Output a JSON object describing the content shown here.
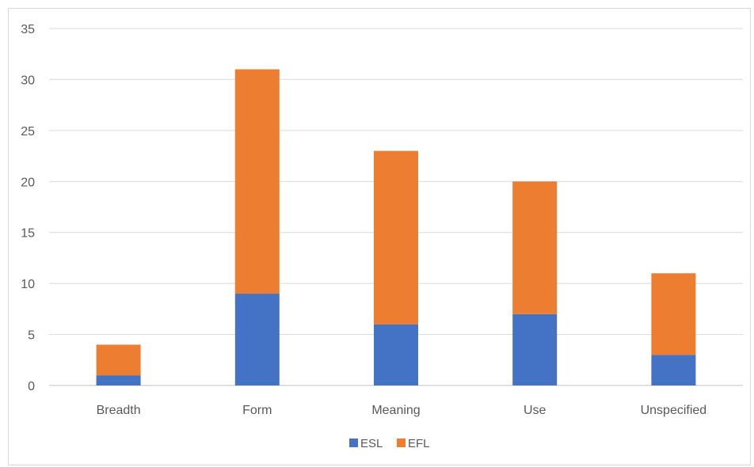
{
  "chart_data": {
    "type": "bar",
    "stacked": true,
    "categories": [
      "Breadth",
      "Form",
      "Meaning",
      "Use",
      "Unspecified"
    ],
    "series": [
      {
        "name": "ESL",
        "color": "#4472c4",
        "values": [
          1,
          9,
          6,
          7,
          3
        ]
      },
      {
        "name": "EFL",
        "color": "#ed7d31",
        "values": [
          3,
          22,
          17,
          13,
          8
        ]
      }
    ],
    "ylim": [
      0,
      35
    ],
    "yticks": [
      0,
      5,
      10,
      15,
      20,
      25,
      30,
      35
    ],
    "grid": true,
    "legend_position": "bottom"
  }
}
